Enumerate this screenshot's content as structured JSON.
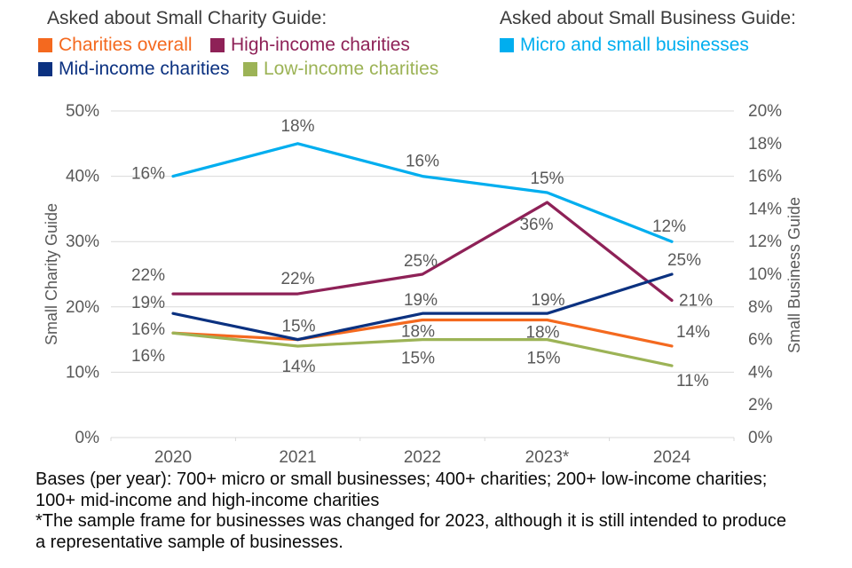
{
  "legend": {
    "charity": {
      "title": "Asked about Small Charity Guide:",
      "items": [
        {
          "label": "Charities overall",
          "color": "#F4691F"
        },
        {
          "label": "High-income charities",
          "color": "#8E2157"
        },
        {
          "label": "Mid-income charities",
          "color": "#0B3180"
        },
        {
          "label": "Low-income charities",
          "color": "#9CB356"
        }
      ]
    },
    "business": {
      "title": "Asked about Small Business Guide:",
      "items": [
        {
          "label": "Micro and small businesses",
          "color": "#00AEEF"
        }
      ]
    }
  },
  "chart_data": {
    "type": "line",
    "x": [
      "2020",
      "2021",
      "2022",
      "2023*",
      "2024"
    ],
    "left_axis": {
      "title": "Small Charity Guide",
      "range": [
        0,
        50
      ],
      "ticks": [
        "0%",
        "10%",
        "20%",
        "30%",
        "40%",
        "50%"
      ]
    },
    "right_axis": {
      "title": "Small Business Guide",
      "range": [
        0,
        20
      ],
      "ticks": [
        "0%",
        "2%",
        "4%",
        "6%",
        "8%",
        "10%",
        "12%",
        "14%",
        "16%",
        "18%",
        "20%"
      ]
    },
    "grid": true,
    "legend_position": "top",
    "series": [
      {
        "name": "Charities overall",
        "axis": "left",
        "color": "#F4691F",
        "values": [
          16,
          15,
          18,
          18,
          14
        ],
        "labels": [
          "16%",
          null,
          "18%",
          "18%",
          "14%"
        ]
      },
      {
        "name": "High-income charities",
        "axis": "left",
        "color": "#8E2157",
        "values": [
          22,
          22,
          25,
          36,
          21
        ],
        "labels": [
          "22%",
          "22%",
          "25%",
          "36%",
          "21%"
        ]
      },
      {
        "name": "Mid-income charities",
        "axis": "left",
        "color": "#0B3180",
        "values": [
          19,
          15,
          19,
          19,
          25
        ],
        "labels": [
          "19%",
          "15%",
          "19%",
          "19%",
          "25%"
        ]
      },
      {
        "name": "Low-income charities",
        "axis": "left",
        "color": "#9CB356",
        "values": [
          16,
          14,
          15,
          15,
          11
        ],
        "labels": [
          "16%",
          "14%",
          "15%",
          "15%",
          "11%"
        ]
      },
      {
        "name": "Micro and small businesses",
        "axis": "right",
        "color": "#00AEEF",
        "values": [
          16,
          18,
          16,
          15,
          12
        ],
        "labels": [
          "16%",
          "18%",
          "16%",
          "15%",
          "12%"
        ]
      }
    ]
  },
  "footer": {
    "lines": [
      "Bases (per year): 700+ micro or small businesses; 400+ charities; 200+ low-income charities;",
      "100+ mid-income and high-income charities",
      "*The sample frame for businesses was changed for 2023, although it is still intended to produce",
      "a representative sample of businesses."
    ]
  }
}
